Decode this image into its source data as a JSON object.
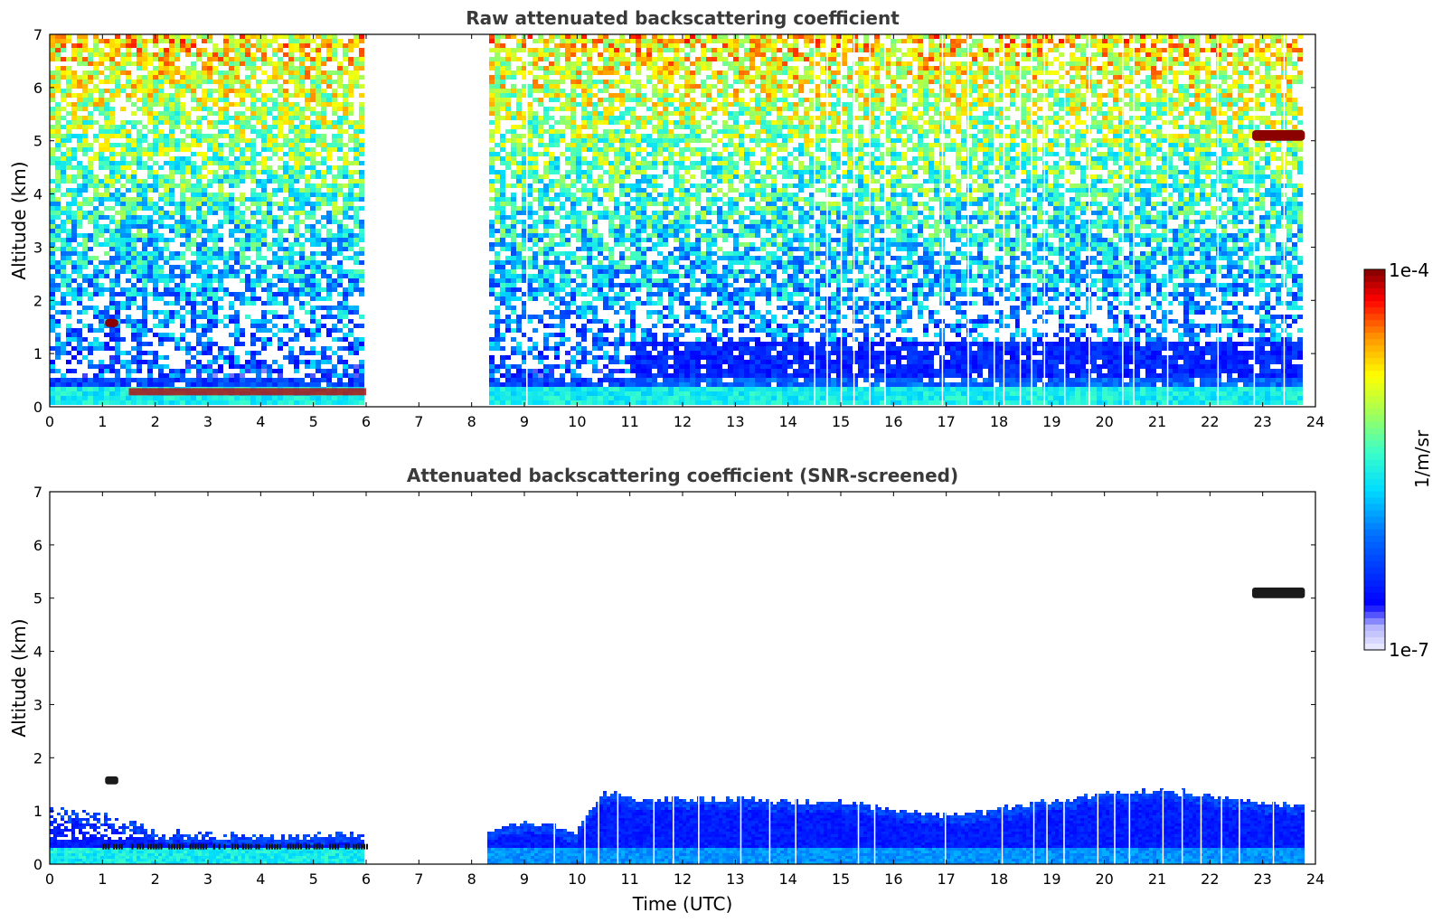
{
  "chart_data": [
    {
      "type": "heatmap",
      "title": "Raw attenuated backscattering coefficient",
      "xlabel": "",
      "ylabel": "Altitude (km)",
      "xlim": [
        0,
        24
      ],
      "ylim": [
        0,
        7
      ],
      "x_ticks": [
        "0",
        "1",
        "2",
        "3",
        "4",
        "5",
        "6",
        "7",
        "8",
        "9",
        "10",
        "11",
        "12",
        "13",
        "14",
        "15",
        "16",
        "17",
        "18",
        "19",
        "20",
        "21",
        "22",
        "23",
        "24"
      ],
      "y_ticks": [
        "0",
        "1",
        "2",
        "3",
        "4",
        "5",
        "6",
        "7"
      ],
      "data_gap_hours": [
        6.0,
        8.3
      ],
      "data_end_hour": 23.8,
      "features": [
        {
          "label": "surface aerosol layer",
          "time": [
            0,
            6
          ],
          "altitude_km": [
            0,
            0.45
          ]
        },
        {
          "label": "surface aerosol layer",
          "time": [
            8.3,
            23.8
          ],
          "altitude_km": [
            0,
            0.8
          ]
        },
        {
          "label": "low cloud",
          "time": [
            1.05,
            1.3
          ],
          "altitude_km": [
            1.5,
            1.65
          ]
        },
        {
          "label": "mid cloud",
          "time": [
            22.8,
            23.8
          ],
          "altitude_km": [
            5.0,
            5.2
          ]
        }
      ]
    },
    {
      "type": "heatmap",
      "title": "Attenuated backscattering coefficient (SNR-screened)",
      "xlabel": "Time (UTC)",
      "ylabel": "Altitude (km)",
      "xlim": [
        0,
        24
      ],
      "ylim": [
        0,
        7
      ],
      "x_ticks": [
        "0",
        "1",
        "2",
        "3",
        "4",
        "5",
        "6",
        "7",
        "8",
        "9",
        "10",
        "11",
        "12",
        "13",
        "14",
        "15",
        "16",
        "17",
        "18",
        "19",
        "20",
        "21",
        "22",
        "23",
        "24"
      ],
      "y_ticks": [
        "0",
        "1",
        "2",
        "3",
        "4",
        "5",
        "6",
        "7"
      ],
      "boundary_layer_top_km": [
        {
          "t": 0,
          "h": 1.0
        },
        {
          "t": 1,
          "h": 0.9
        },
        {
          "t": 2,
          "h": 0.6
        },
        {
          "t": 3,
          "h": 0.55
        },
        {
          "t": 4,
          "h": 0.5
        },
        {
          "t": 5,
          "h": 0.55
        },
        {
          "t": 6,
          "h": 0.55
        },
        {
          "t": 8.3,
          "h": 0.55
        },
        {
          "t": 9,
          "h": 0.75
        },
        {
          "t": 10,
          "h": 0.6
        },
        {
          "t": 10.5,
          "h": 1.35
        },
        {
          "t": 11,
          "h": 1.2
        },
        {
          "t": 12,
          "h": 1.2
        },
        {
          "t": 13,
          "h": 1.2
        },
        {
          "t": 14,
          "h": 1.15
        },
        {
          "t": 15,
          "h": 1.15
        },
        {
          "t": 16,
          "h": 1.0
        },
        {
          "t": 17,
          "h": 0.9
        },
        {
          "t": 18,
          "h": 1.0
        },
        {
          "t": 19,
          "h": 1.15
        },
        {
          "t": 20,
          "h": 1.3
        },
        {
          "t": 21,
          "h": 1.35
        },
        {
          "t": 22,
          "h": 1.3
        },
        {
          "t": 23,
          "h": 1.1
        },
        {
          "t": 23.8,
          "h": 1.1
        }
      ]
    }
  ],
  "colorbar": {
    "max_label": "1e-4",
    "min_label": "1e-7",
    "unit_label": "1/m/sr",
    "colors": [
      "#7f0000",
      "#ff0000",
      "#ff8000",
      "#ffff00",
      "#80ff80",
      "#00ffff",
      "#0080ff",
      "#0000ff",
      "#ccccff",
      "#eeeeff"
    ]
  }
}
